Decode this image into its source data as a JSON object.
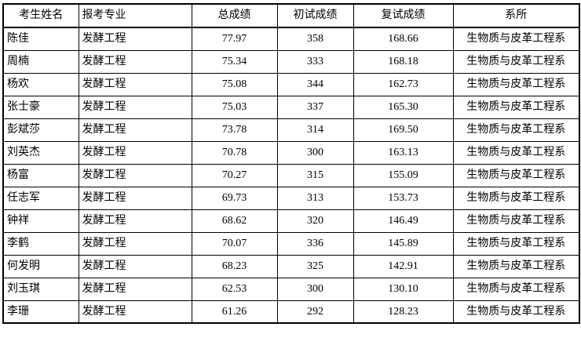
{
  "page": {
    "background_color": "#ffffff",
    "border_color": "#000000",
    "text_color": "#000000"
  },
  "table": {
    "headers": [
      {
        "label": "考生姓名",
        "align": "center"
      },
      {
        "label": "报考专业",
        "align": "left"
      },
      {
        "label": "总成绩",
        "align": "center"
      },
      {
        "label": "初试成绩",
        "align": "center"
      },
      {
        "label": "复试成绩",
        "align": "center"
      },
      {
        "label": "系所",
        "align": "center"
      }
    ],
    "rows": [
      {
        "name": "陈佳",
        "major": "发酵工程",
        "total_score": "77.97",
        "initial_score": "358",
        "retest_score": "168.66",
        "department": "生物质与皮革工程系"
      },
      {
        "name": "周楠",
        "major": "发酵工程",
        "total_score": "75.34",
        "initial_score": "333",
        "retest_score": "168.18",
        "department": "生物质与皮革工程系"
      },
      {
        "name": "杨欢",
        "major": "发酵工程",
        "total_score": "75.08",
        "initial_score": "344",
        "retest_score": "162.73",
        "department": "生物质与皮革工程系"
      },
      {
        "name": "张士豪",
        "major": "发酵工程",
        "total_score": "75.03",
        "initial_score": "337",
        "retest_score": "165.30",
        "department": "生物质与皮革工程系"
      },
      {
        "name": "彭斌莎",
        "major": "发酵工程",
        "total_score": "73.78",
        "initial_score": "314",
        "retest_score": "169.50",
        "department": "生物质与皮革工程系"
      },
      {
        "name": "刘英杰",
        "major": "发酵工程",
        "total_score": "70.78",
        "initial_score": "300",
        "retest_score": "163.13",
        "department": "生物质与皮革工程系"
      },
      {
        "name": "杨富",
        "major": "发酵工程",
        "total_score": "70.27",
        "initial_score": "315",
        "retest_score": "155.09",
        "department": "生物质与皮革工程系"
      },
      {
        "name": "任志军",
        "major": "发酵工程",
        "total_score": "69.73",
        "initial_score": "313",
        "retest_score": "153.73",
        "department": "生物质与皮革工程系"
      },
      {
        "name": "钟祥",
        "major": "发酵工程",
        "total_score": "68.62",
        "initial_score": "320",
        "retest_score": "146.49",
        "department": "生物质与皮革工程系"
      },
      {
        "name": "李鹤",
        "major": "发酵工程",
        "total_score": "70.07",
        "initial_score": "336",
        "retest_score": "145.89",
        "department": "生物质与皮革工程系"
      },
      {
        "name": "何发明",
        "major": "发酵工程",
        "total_score": "68.23",
        "initial_score": "325",
        "retest_score": "142.91",
        "department": "生物质与皮革工程系"
      },
      {
        "name": "刘玉琪",
        "major": "发酵工程",
        "total_score": "62.53",
        "initial_score": "300",
        "retest_score": "130.10",
        "department": "生物质与皮革工程系"
      },
      {
        "name": "李珊",
        "major": "发酵工程",
        "total_score": "61.26",
        "initial_score": "292",
        "retest_score": "128.23",
        "department": "生物质与皮革工程系"
      }
    ]
  }
}
